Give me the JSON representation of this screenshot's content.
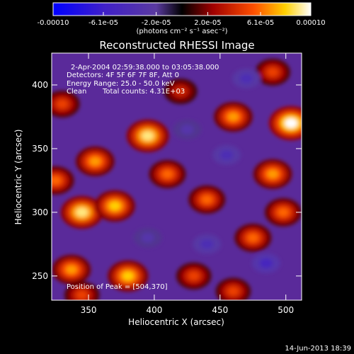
{
  "chart_data": {
    "type": "heatmap",
    "title": "Reconstructed RHESSI Image",
    "xlabel": "Heliocentric X (arcsec)",
    "ylabel": "Heliocentric Y (arcsec)",
    "xlim": [
      322,
      512
    ],
    "ylim": [
      231,
      425
    ],
    "xticks": [
      350,
      400,
      450,
      500
    ],
    "yticks": [
      250,
      300,
      350,
      400
    ],
    "colorbar": {
      "range": [
        -0.0001,
        0.0001
      ],
      "ticks": [
        {
          "value": -0.0001,
          "label": "-0.00010"
        },
        {
          "value": -6.1e-05,
          "label": "-6.1e-05"
        },
        {
          "value": -2e-05,
          "label": "-2.0e-05"
        },
        {
          "value": 2e-05,
          "label": "2.0e-05"
        },
        {
          "value": 6.1e-05,
          "label": "6.1e-05"
        },
        {
          "value": 0.0001,
          "label": "0.00010"
        }
      ],
      "units": "(photons cm⁻² s⁻¹ asec⁻²)"
    },
    "annotations": {
      "time_range": "2-Apr-2004 02:59:38.000 to 03:05:38.000",
      "detectors": "Detectors: 4F 5F 6F 7F 8F, Att 0",
      "energy": "Energy Range: 25.0 - 50.0 keV",
      "method": "Clean",
      "counts": "Total counts: 4.31E+03",
      "peak": "Position of Peak = [504,370]"
    },
    "peak_position": [
      504,
      370
    ],
    "date_stamp": "14-Jun-2013 18:39",
    "features": [
      {
        "x": 504,
        "y": 370,
        "value": 0.0001
      },
      {
        "x": 395,
        "y": 360,
        "value": 9e-05
      },
      {
        "x": 345,
        "y": 300,
        "value": 9e-05
      },
      {
        "x": 370,
        "y": 305,
        "value": 8e-05
      },
      {
        "x": 337,
        "y": 255,
        "value": 7e-05
      },
      {
        "x": 380,
        "y": 250,
        "value": 8e-05
      },
      {
        "x": 410,
        "y": 330,
        "value": 6e-05
      },
      {
        "x": 440,
        "y": 310,
        "value": 6e-05
      },
      {
        "x": 460,
        "y": 375,
        "value": 7e-05
      },
      {
        "x": 490,
        "y": 330,
        "value": 7e-05
      },
      {
        "x": 498,
        "y": 300,
        "value": 6e-05
      },
      {
        "x": 475,
        "y": 280,
        "value": 6e-05
      },
      {
        "x": 430,
        "y": 250,
        "value": 5e-05
      },
      {
        "x": 330,
        "y": 385,
        "value": 5e-05
      },
      {
        "x": 355,
        "y": 340,
        "value": 7e-05
      },
      {
        "x": 325,
        "y": 325,
        "value": 6e-05
      },
      {
        "x": 420,
        "y": 395,
        "value": 4e-05
      },
      {
        "x": 490,
        "y": 410,
        "value": 5e-05
      },
      {
        "x": 345,
        "y": 235,
        "value": 5e-05
      },
      {
        "x": 460,
        "y": 238,
        "value": 5e-05
      },
      {
        "x": 440,
        "y": 275,
        "value": -4e-05
      },
      {
        "x": 485,
        "y": 260,
        "value": -5e-05
      },
      {
        "x": 455,
        "y": 345,
        "value": -4e-05
      },
      {
        "x": 395,
        "y": 280,
        "value": -3e-05
      },
      {
        "x": 470,
        "y": 405,
        "value": -4e-05
      },
      {
        "x": 425,
        "y": 365,
        "value": -3e-05
      }
    ]
  }
}
